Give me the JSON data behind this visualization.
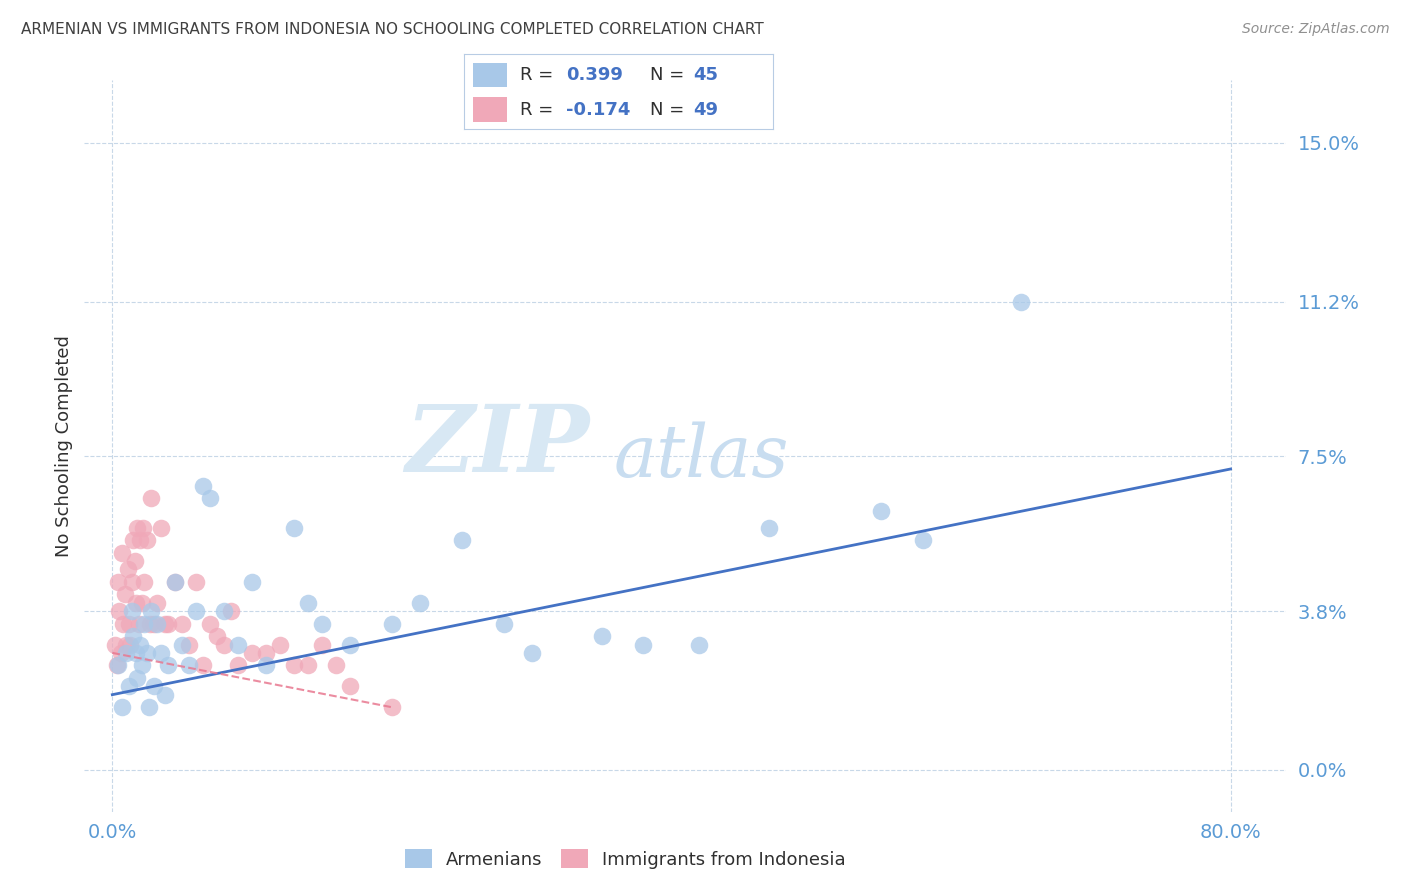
{
  "title": "ARMENIAN VS IMMIGRANTS FROM INDONESIA NO SCHOOLING COMPLETED CORRELATION CHART",
  "source": "Source: ZipAtlas.com",
  "ylabel": "No Schooling Completed",
  "ylabel_tick_vals": [
    0.0,
    3.8,
    7.5,
    11.2,
    15.0
  ],
  "xlabel_tick_vals": [
    0.0,
    80.0
  ],
  "xlim": [
    -2.0,
    84.0
  ],
  "ylim": [
    -1.0,
    16.5
  ],
  "blue_scatter_color": "#a8c8e8",
  "pink_scatter_color": "#f0a8b8",
  "blue_line_color": "#4472c4",
  "pink_line_color": "#e87890",
  "title_color": "#404040",
  "tick_color": "#5b9bd5",
  "grid_color": "#c8d8e8",
  "watermark_zip_color": "#d8e8f4",
  "watermark_atlas_color": "#c8ddf0",
  "legend_label_blue": "Armenians",
  "legend_label_pink": "Immigrants from Indonesia",
  "armenians_x": [
    0.4,
    0.7,
    1.0,
    1.2,
    1.4,
    1.5,
    1.7,
    1.8,
    2.0,
    2.1,
    2.3,
    2.5,
    2.6,
    2.8,
    3.0,
    3.2,
    3.5,
    3.8,
    4.0,
    4.5,
    5.0,
    5.5,
    6.0,
    6.5,
    7.0,
    8.0,
    9.0,
    10.0,
    11.0,
    13.0,
    14.0,
    15.0,
    17.0,
    20.0,
    22.0,
    25.0,
    28.0,
    30.0,
    35.0,
    38.0,
    42.0,
    47.0,
    55.0,
    58.0,
    65.0
  ],
  "armenians_y": [
    2.5,
    1.5,
    2.8,
    2.0,
    3.8,
    3.2,
    2.8,
    2.2,
    3.0,
    2.5,
    3.5,
    2.8,
    1.5,
    3.8,
    2.0,
    3.5,
    2.8,
    1.8,
    2.5,
    4.5,
    3.0,
    2.5,
    3.8,
    6.8,
    6.5,
    3.8,
    3.0,
    4.5,
    2.5,
    5.8,
    4.0,
    3.5,
    3.0,
    3.5,
    4.0,
    5.5,
    3.5,
    2.8,
    3.2,
    3.0,
    3.0,
    5.8,
    6.2,
    5.5,
    11.2
  ],
  "indonesia_x": [
    0.2,
    0.3,
    0.4,
    0.5,
    0.6,
    0.7,
    0.8,
    0.9,
    1.0,
    1.1,
    1.2,
    1.3,
    1.4,
    1.5,
    1.6,
    1.7,
    1.8,
    1.9,
    2.0,
    2.1,
    2.2,
    2.3,
    2.5,
    2.7,
    2.8,
    3.0,
    3.2,
    3.5,
    3.8,
    4.0,
    4.5,
    5.0,
    5.5,
    6.0,
    6.5,
    7.0,
    7.5,
    8.0,
    8.5,
    9.0,
    10.0,
    11.0,
    12.0,
    13.0,
    14.0,
    15.0,
    16.0,
    17.0,
    20.0
  ],
  "indonesia_y": [
    3.0,
    2.5,
    4.5,
    3.8,
    2.8,
    5.2,
    3.5,
    4.2,
    3.0,
    4.8,
    3.5,
    3.0,
    4.5,
    5.5,
    5.0,
    4.0,
    5.8,
    3.5,
    5.5,
    4.0,
    5.8,
    4.5,
    5.5,
    3.5,
    6.5,
    3.5,
    4.0,
    5.8,
    3.5,
    3.5,
    4.5,
    3.5,
    3.0,
    4.5,
    2.5,
    3.5,
    3.2,
    3.0,
    3.8,
    2.5,
    2.8,
    2.8,
    3.0,
    2.5,
    2.5,
    3.0,
    2.5,
    2.0,
    1.5
  ],
  "blue_line_x0": 0.0,
  "blue_line_y0": 1.8,
  "blue_line_x1": 80.0,
  "blue_line_y1": 7.2,
  "pink_line_x0": 0.0,
  "pink_line_y0": 2.8,
  "pink_line_x1": 20.0,
  "pink_line_y1": 1.5
}
